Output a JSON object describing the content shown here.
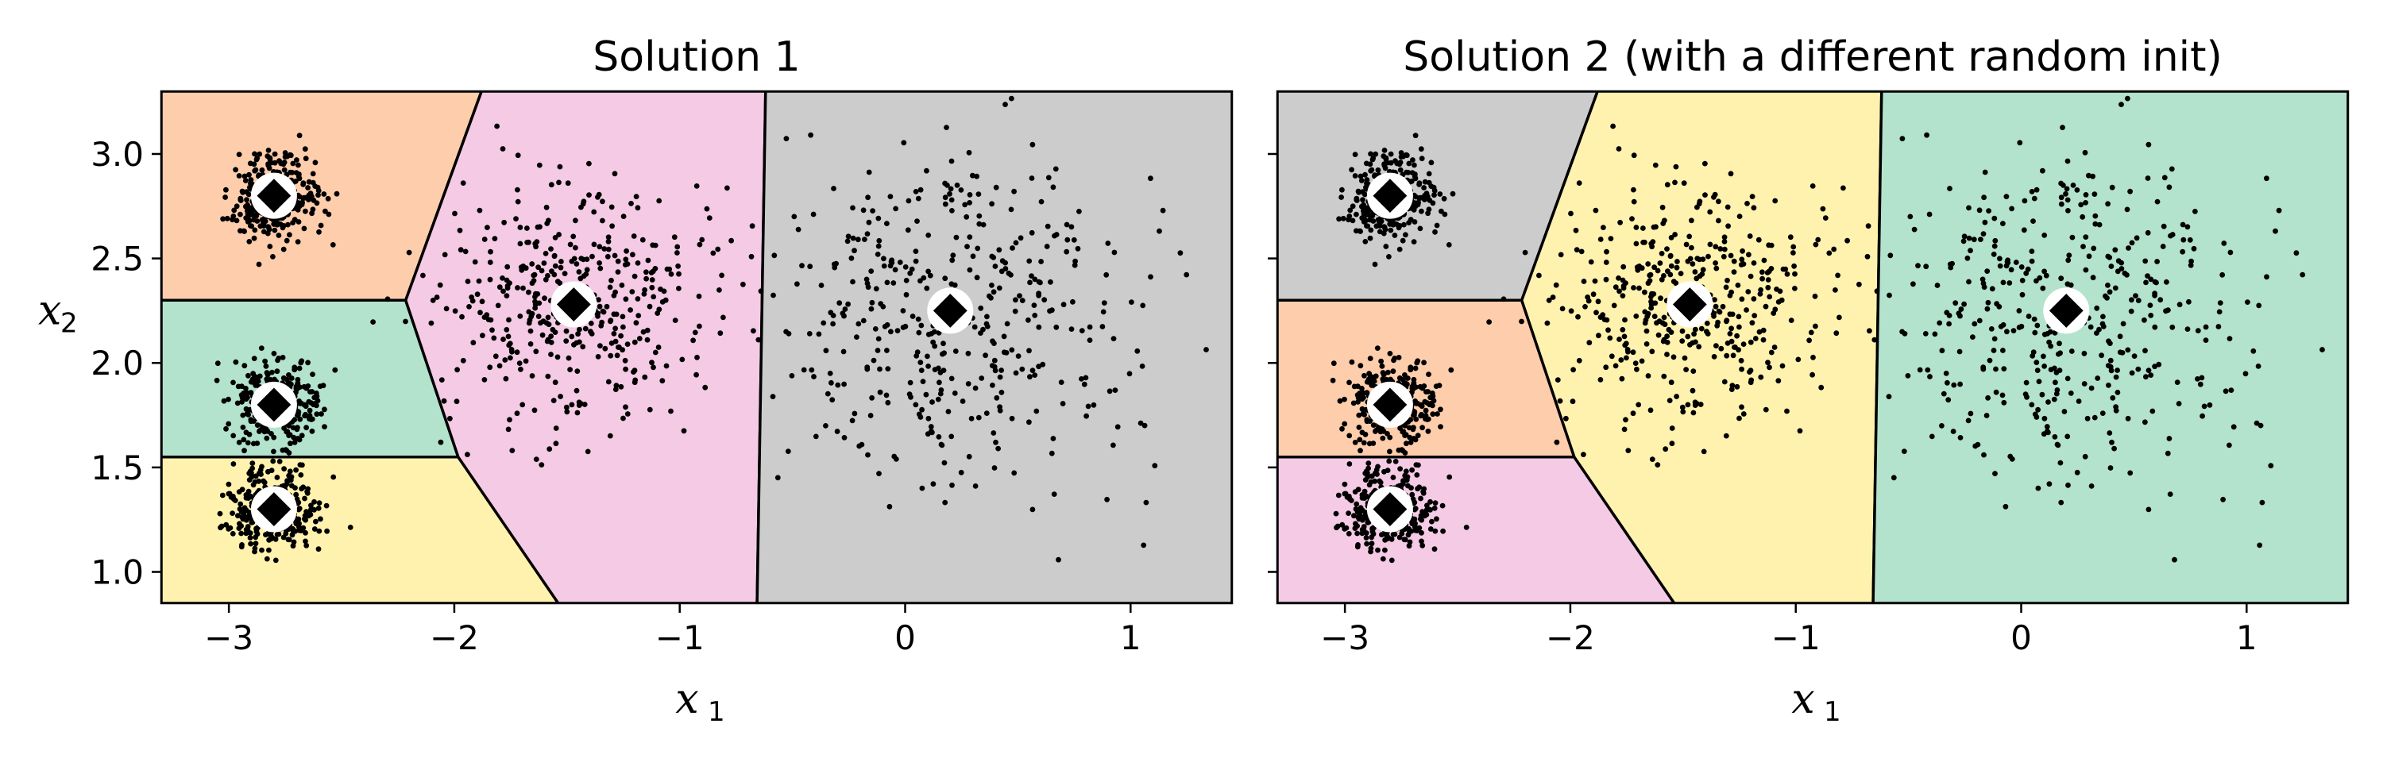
{
  "chart_data": [
    {
      "type": "scatter",
      "title": "Solution 1",
      "xlabel": "x",
      "xlabel_sub": "1",
      "ylabel": "x",
      "ylabel_sub": "2",
      "xlim": [
        -3.3,
        1.45
      ],
      "ylim": [
        0.85,
        3.3
      ],
      "xticks": [
        -3,
        -2,
        -1,
        0,
        1
      ],
      "xtick_labels": [
        "−3",
        "−2",
        "−1",
        "0",
        "1"
      ],
      "yticks": [
        1.0,
        1.5,
        2.0,
        2.5,
        3.0
      ],
      "ytick_labels": [
        "1.0",
        "1.5",
        "2.0",
        "2.5",
        "3.0"
      ],
      "show_yticklabels": true,
      "centroids": [
        [
          -2.8,
          2.8
        ],
        [
          -2.8,
          1.8
        ],
        [
          -2.8,
          1.3
        ],
        [
          -1.47,
          2.28
        ],
        [
          0.2,
          2.25
        ]
      ],
      "region_colors": [
        "#fdcdac",
        "#b3e2cd",
        "#fff2ae",
        "#f4cae4",
        "#cccccc"
      ],
      "blobs": [
        {
          "center": [
            -2.8,
            2.8
          ],
          "std": 0.1,
          "count": 320
        },
        {
          "center": [
            -2.8,
            1.8
          ],
          "std": 0.1,
          "count": 320
        },
        {
          "center": [
            -2.8,
            1.3
          ],
          "std": 0.1,
          "count": 320
        },
        {
          "center": [
            -1.47,
            2.28
          ],
          "std": 0.3,
          "count": 420
        },
        {
          "center": [
            0.2,
            2.25
          ],
          "std": 0.4,
          "count": 420
        }
      ]
    },
    {
      "type": "scatter",
      "title": "Solution 2 (with a different random init)",
      "xlabel": "x",
      "xlabel_sub": "1",
      "ylabel": "",
      "ylabel_sub": "",
      "xlim": [
        -3.3,
        1.45
      ],
      "ylim": [
        0.85,
        3.3
      ],
      "xticks": [
        -3,
        -2,
        -1,
        0,
        1
      ],
      "xtick_labels": [
        "−3",
        "−2",
        "−1",
        "0",
        "1"
      ],
      "yticks": [
        1.0,
        1.5,
        2.0,
        2.5,
        3.0
      ],
      "ytick_labels": [
        "",
        "",
        "",
        "",
        ""
      ],
      "show_yticklabels": false,
      "centroids": [
        [
          -2.8,
          2.8
        ],
        [
          -2.8,
          1.8
        ],
        [
          -2.8,
          1.3
        ],
        [
          -1.47,
          2.28
        ],
        [
          0.2,
          2.25
        ]
      ],
      "region_colors": [
        "#cccccc",
        "#fdcdac",
        "#f4cae4",
        "#fff2ae",
        "#b3e2cd"
      ],
      "blobs": [
        {
          "center": [
            -2.8,
            2.8
          ],
          "std": 0.1,
          "count": 320
        },
        {
          "center": [
            -2.8,
            1.8
          ],
          "std": 0.1,
          "count": 320
        },
        {
          "center": [
            -2.8,
            1.3
          ],
          "std": 0.1,
          "count": 320
        },
        {
          "center": [
            -1.47,
            2.28
          ],
          "std": 0.3,
          "count": 420
        },
        {
          "center": [
            0.2,
            2.25
          ],
          "std": 0.4,
          "count": 420
        }
      ]
    }
  ]
}
